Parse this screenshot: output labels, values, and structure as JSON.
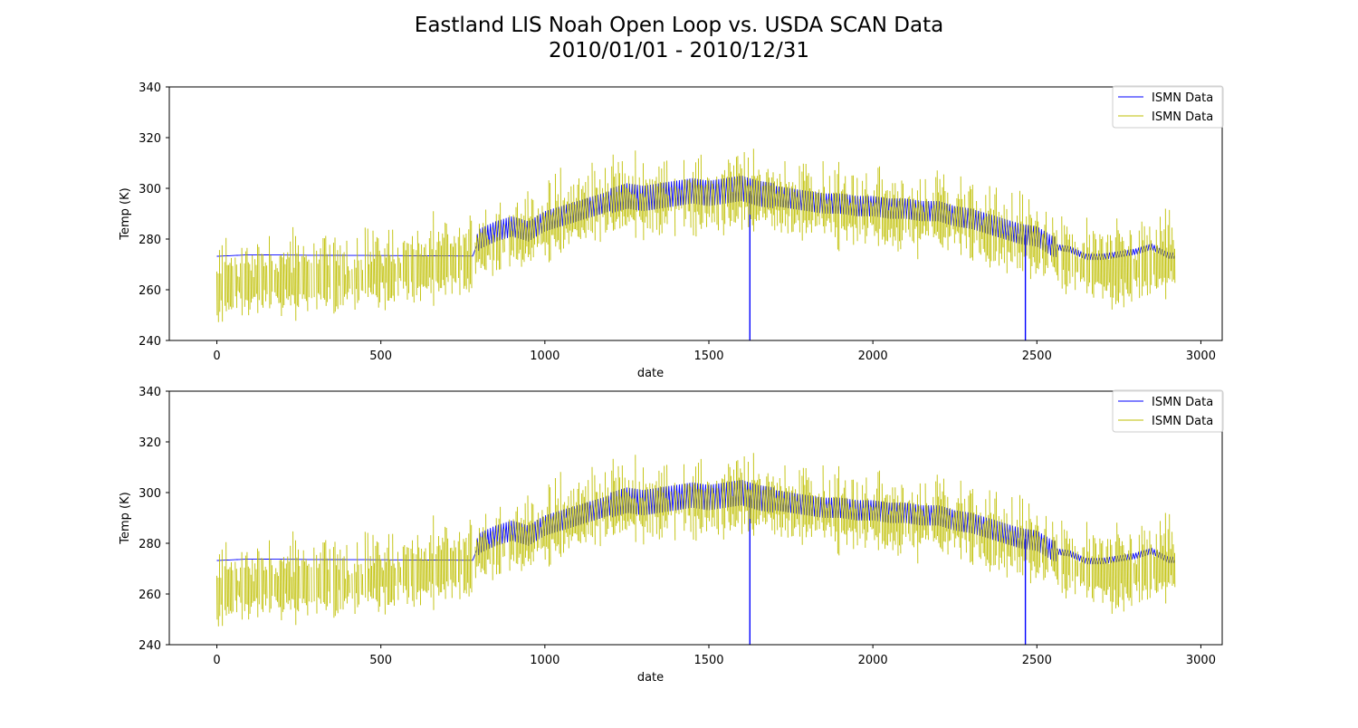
{
  "figure": {
    "title_line1": "Eastland LIS Noah Open Loop vs. USDA SCAN Data",
    "title_line2": "2010/01/01 - 2010/12/31"
  },
  "colors": {
    "series_1": "#0000ff",
    "series_2": "#bfbf00"
  },
  "chart_data": [
    {
      "type": "line",
      "title": "",
      "xlabel": "date",
      "ylabel": "Temp (K)",
      "xlim": [
        -145,
        3065
      ],
      "ylim": [
        240,
        340
      ],
      "xticks": [
        0,
        500,
        1000,
        1500,
        2000,
        2500,
        3000
      ],
      "yticks": [
        240,
        260,
        280,
        300,
        320,
        340
      ],
      "legend_position": "upper right",
      "grid": false,
      "series": [
        {
          "name": "ISMN Data",
          "color": "#0000ff",
          "spikes": [
            [
              1625,
              240
            ],
            [
              2465,
              240
            ]
          ],
          "points": [
            [
              0,
              273.2
            ],
            [
              100,
              273.8
            ],
            [
              300,
              273.6
            ],
            [
              500,
              273.5
            ],
            [
              780,
              273.3
            ],
            [
              800,
              280
            ],
            [
              850,
              283
            ],
            [
              900,
              285
            ],
            [
              950,
              283
            ],
            [
              1000,
              287
            ],
            [
              1050,
              289
            ],
            [
              1100,
              291
            ],
            [
              1150,
              293
            ],
            [
              1200,
              295
            ],
            [
              1250,
              297
            ],
            [
              1300,
              296
            ],
            [
              1350,
              297
            ],
            [
              1400,
              298
            ],
            [
              1450,
              299
            ],
            [
              1500,
              298
            ],
            [
              1550,
              299
            ],
            [
              1600,
              300
            ],
            [
              1650,
              298
            ],
            [
              1700,
              297
            ],
            [
              1750,
              296
            ],
            [
              1800,
              295
            ],
            [
              1850,
              294
            ],
            [
              1900,
              294
            ],
            [
              1950,
              293
            ],
            [
              2000,
              293
            ],
            [
              2050,
              292
            ],
            [
              2100,
              292
            ],
            [
              2150,
              291
            ],
            [
              2200,
              291
            ],
            [
              2250,
              289
            ],
            [
              2300,
              288
            ],
            [
              2350,
              286
            ],
            [
              2400,
              284
            ],
            [
              2450,
              282
            ],
            [
              2500,
              281
            ],
            [
              2550,
              277
            ],
            [
              2600,
              276
            ],
            [
              2650,
              273
            ],
            [
              2700,
              273
            ],
            [
              2750,
              274
            ],
            [
              2800,
              275
            ],
            [
              2850,
              277
            ],
            [
              2900,
              273.5
            ],
            [
              2920,
              273.5
            ]
          ]
        },
        {
          "name": "ISMN Data",
          "color": "#bfbf00",
          "points": [
            [
              0,
              258
            ],
            [
              50,
              262
            ],
            [
              100,
              260
            ],
            [
              150,
              263
            ],
            [
              200,
              262
            ],
            [
              250,
              263
            ],
            [
              300,
              262
            ],
            [
              350,
              264
            ],
            [
              400,
              263
            ],
            [
              450,
              265
            ],
            [
              500,
              266
            ],
            [
              550,
              266
            ],
            [
              600,
              267
            ],
            [
              650,
              268
            ],
            [
              780,
              272
            ],
            [
              800,
              275
            ],
            [
              850,
              276
            ],
            [
              900,
              278
            ],
            [
              950,
              280
            ],
            [
              1000,
              283
            ],
            [
              1050,
              286
            ],
            [
              1100,
              289
            ],
            [
              1150,
              291
            ],
            [
              1200,
              292
            ],
            [
              1250,
              294
            ],
            [
              1300,
              292
            ],
            [
              1350,
              293
            ],
            [
              1400,
              294
            ],
            [
              1450,
              295
            ],
            [
              1500,
              294
            ],
            [
              1550,
              295
            ],
            [
              1600,
              296
            ],
            [
              1650,
              295
            ],
            [
              1700,
              294
            ],
            [
              1750,
              293
            ],
            [
              1800,
              292
            ],
            [
              1850,
              291
            ],
            [
              1900,
              290
            ],
            [
              1950,
              289
            ],
            [
              2000,
              289
            ],
            [
              2050,
              288
            ],
            [
              2100,
              288
            ],
            [
              2150,
              287
            ],
            [
              2200,
              287
            ],
            [
              2250,
              286
            ],
            [
              2300,
              284
            ],
            [
              2350,
              282
            ],
            [
              2400,
              279
            ],
            [
              2450,
              278
            ],
            [
              2500,
              275
            ],
            [
              2550,
              273
            ],
            [
              2600,
              270
            ],
            [
              2650,
              268
            ],
            [
              2700,
              266
            ],
            [
              2750,
              268
            ],
            [
              2800,
              267
            ],
            [
              2850,
              269
            ],
            [
              2900,
              270
            ]
          ],
          "spike_amplitude": 12
        }
      ]
    },
    {
      "type": "line",
      "title": "",
      "xlabel": "date",
      "ylabel": "Temp (K)",
      "xlim": [
        -145,
        3065
      ],
      "ylim": [
        240,
        340
      ],
      "xticks": [
        0,
        500,
        1000,
        1500,
        2000,
        2500,
        3000
      ],
      "yticks": [
        240,
        260,
        280,
        300,
        320,
        340
      ],
      "legend_position": "upper right",
      "grid": false,
      "series": [
        {
          "name": "ISMN Data",
          "color": "#0000ff",
          "spikes": [
            [
              1625,
              240
            ],
            [
              2465,
              240
            ]
          ],
          "points": [
            [
              0,
              273.2
            ],
            [
              100,
              273.8
            ],
            [
              300,
              273.6
            ],
            [
              500,
              273.5
            ],
            [
              780,
              273.3
            ],
            [
              800,
              280
            ],
            [
              850,
              283
            ],
            [
              900,
              285
            ],
            [
              950,
              283
            ],
            [
              1000,
              287
            ],
            [
              1050,
              289
            ],
            [
              1100,
              291
            ],
            [
              1150,
              293
            ],
            [
              1200,
              295
            ],
            [
              1250,
              297
            ],
            [
              1300,
              296
            ],
            [
              1350,
              297
            ],
            [
              1400,
              298
            ],
            [
              1450,
              299
            ],
            [
              1500,
              298
            ],
            [
              1550,
              299
            ],
            [
              1600,
              300
            ],
            [
              1650,
              298
            ],
            [
              1700,
              297
            ],
            [
              1750,
              296
            ],
            [
              1800,
              295
            ],
            [
              1850,
              294
            ],
            [
              1900,
              294
            ],
            [
              1950,
              293
            ],
            [
              2000,
              293
            ],
            [
              2050,
              292
            ],
            [
              2100,
              292
            ],
            [
              2150,
              291
            ],
            [
              2200,
              291
            ],
            [
              2250,
              289
            ],
            [
              2300,
              288
            ],
            [
              2350,
              286
            ],
            [
              2400,
              284
            ],
            [
              2450,
              282
            ],
            [
              2500,
              281
            ],
            [
              2550,
              277
            ],
            [
              2600,
              276
            ],
            [
              2650,
              273
            ],
            [
              2700,
              273
            ],
            [
              2750,
              274
            ],
            [
              2800,
              275
            ],
            [
              2850,
              277
            ],
            [
              2900,
              273.5
            ],
            [
              2920,
              273.5
            ]
          ]
        },
        {
          "name": "ISMN Data",
          "color": "#bfbf00",
          "points": [
            [
              0,
              258
            ],
            [
              50,
              262
            ],
            [
              100,
              260
            ],
            [
              150,
              263
            ],
            [
              200,
              262
            ],
            [
              250,
              263
            ],
            [
              300,
              262
            ],
            [
              350,
              264
            ],
            [
              400,
              263
            ],
            [
              450,
              265
            ],
            [
              500,
              266
            ],
            [
              550,
              266
            ],
            [
              600,
              267
            ],
            [
              650,
              268
            ],
            [
              780,
              272
            ],
            [
              800,
              275
            ],
            [
              850,
              276
            ],
            [
              900,
              278
            ],
            [
              950,
              280
            ],
            [
              1000,
              283
            ],
            [
              1050,
              286
            ],
            [
              1100,
              289
            ],
            [
              1150,
              291
            ],
            [
              1200,
              292
            ],
            [
              1250,
              294
            ],
            [
              1300,
              292
            ],
            [
              1350,
              293
            ],
            [
              1400,
              294
            ],
            [
              1450,
              295
            ],
            [
              1500,
              294
            ],
            [
              1550,
              295
            ],
            [
              1600,
              296
            ],
            [
              1650,
              295
            ],
            [
              1700,
              294
            ],
            [
              1750,
              293
            ],
            [
              1800,
              292
            ],
            [
              1850,
              291
            ],
            [
              1900,
              290
            ],
            [
              1950,
              289
            ],
            [
              2000,
              289
            ],
            [
              2050,
              288
            ],
            [
              2100,
              288
            ],
            [
              2150,
              287
            ],
            [
              2200,
              287
            ],
            [
              2250,
              286
            ],
            [
              2300,
              284
            ],
            [
              2350,
              282
            ],
            [
              2400,
              279
            ],
            [
              2450,
              278
            ],
            [
              2500,
              275
            ],
            [
              2550,
              273
            ],
            [
              2600,
              270
            ],
            [
              2650,
              268
            ],
            [
              2700,
              266
            ],
            [
              2750,
              268
            ],
            [
              2800,
              267
            ],
            [
              2850,
              269
            ],
            [
              2900,
              270
            ]
          ],
          "spike_amplitude": 12
        }
      ]
    }
  ]
}
